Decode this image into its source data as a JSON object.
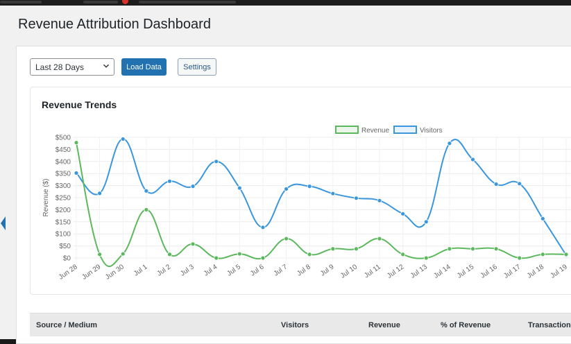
{
  "page": {
    "title": "Revenue Attribution Dashboard"
  },
  "controls": {
    "date_range": "Last 28 Days",
    "load_label": "Load Data",
    "settings_label": "Settings"
  },
  "chart": {
    "title": "Revenue Trends"
  },
  "table": {
    "headers": [
      "Source / Medium",
      "Visitors",
      "Revenue",
      "% of Revenue",
      "Transactions"
    ]
  },
  "colors": {
    "revenue": "#5cb85c",
    "visitors": "#3a96dd",
    "primary_button": "#2271b1"
  },
  "icons": {
    "select_chevron": "chevron-down-icon",
    "left_tab": "chevron-left-icon"
  },
  "chart_data": {
    "type": "line",
    "title": "Revenue Trends",
    "ylabel": "Revenue ($)",
    "ylim": [
      0,
      500
    ],
    "yticks": [
      "$0",
      "$50",
      "$100",
      "$150",
      "$200",
      "$250",
      "$300",
      "$350",
      "$400",
      "$450",
      "$500"
    ],
    "categories": [
      "Jun 28",
      "Jun 29",
      "Jun 30",
      "Jul 1",
      "Jul 2",
      "Jul 3",
      "Jul 4",
      "Jul 5",
      "Jul 6",
      "Jul 7",
      "Jul 8",
      "Jul 9",
      "Jul 10",
      "Jul 11",
      "Jul 12",
      "Jul 13",
      "Jul 14",
      "Jul 15",
      "Jul 16",
      "Jul 17",
      "Jul 18",
      "Jul 19"
    ],
    "series": [
      {
        "name": "Revenue",
        "values": [
          478,
          15,
          17,
          200,
          15,
          58,
          0,
          17,
          0,
          80,
          15,
          38,
          38,
          80,
          15,
          0,
          38,
          38,
          38,
          0,
          15,
          15
        ]
      },
      {
        "name": "Visitors",
        "values": [
          352,
          268,
          493,
          278,
          318,
          297,
          400,
          290,
          127,
          286,
          297,
          267,
          248,
          238,
          183,
          150,
          475,
          408,
          306,
          308,
          163,
          12
        ]
      }
    ],
    "legend": "top-center",
    "grid": true
  }
}
